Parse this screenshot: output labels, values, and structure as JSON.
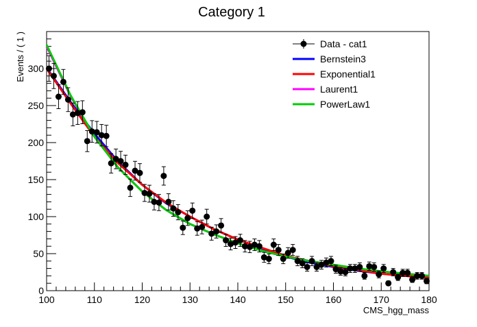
{
  "chart_data": {
    "type": "scatter",
    "title": "Category 1",
    "xlabel": "CMS_hgg_mass",
    "ylabel": "Events / ( 1 )",
    "xlim": [
      100,
      180
    ],
    "ylim": [
      0,
      350
    ],
    "xticks": [
      100,
      110,
      120,
      130,
      140,
      150,
      160,
      170,
      180
    ],
    "yticks": [
      0,
      50,
      100,
      150,
      200,
      250,
      300
    ],
    "legend_position": "top-right",
    "data_series": {
      "name": "Data - cat1",
      "color": "#000000",
      "points": [
        [
          100.5,
          300
        ],
        [
          101.5,
          290
        ],
        [
          102.5,
          262
        ],
        [
          103.5,
          282
        ],
        [
          104.5,
          258
        ],
        [
          105.5,
          238
        ],
        [
          106.5,
          240
        ],
        [
          107.5,
          241
        ],
        [
          108.5,
          202
        ],
        [
          109.5,
          215
        ],
        [
          110.5,
          214
        ],
        [
          111.5,
          210
        ],
        [
          112.5,
          209
        ],
        [
          113.5,
          172
        ],
        [
          114.5,
          178
        ],
        [
          115.5,
          175
        ],
        [
          116.5,
          170
        ],
        [
          117.5,
          139
        ],
        [
          118.5,
          162
        ],
        [
          119.5,
          159
        ],
        [
          120.5,
          132
        ],
        [
          121.5,
          131
        ],
        [
          122.5,
          120
        ],
        [
          123.5,
          119
        ],
        [
          124.5,
          155
        ],
        [
          125.5,
          120
        ],
        [
          126.5,
          111
        ],
        [
          127.5,
          106
        ],
        [
          128.5,
          85
        ],
        [
          129.5,
          98
        ],
        [
          130.5,
          108
        ],
        [
          131.5,
          84
        ],
        [
          132.5,
          86
        ],
        [
          133.5,
          100
        ],
        [
          134.5,
          77
        ],
        [
          135.5,
          80
        ],
        [
          136.5,
          88
        ],
        [
          137.5,
          68
        ],
        [
          138.5,
          63
        ],
        [
          139.5,
          65
        ],
        [
          140.5,
          68
        ],
        [
          141.5,
          60
        ],
        [
          142.5,
          59
        ],
        [
          143.5,
          62
        ],
        [
          144.5,
          60
        ],
        [
          145.5,
          45
        ],
        [
          146.5,
          43
        ],
        [
          147.5,
          62
        ],
        [
          148.5,
          55
        ],
        [
          149.5,
          43
        ],
        [
          150.5,
          51
        ],
        [
          151.5,
          55
        ],
        [
          152.5,
          40
        ],
        [
          153.5,
          37
        ],
        [
          154.5,
          32
        ],
        [
          155.5,
          40
        ],
        [
          156.5,
          32
        ],
        [
          157.5,
          35
        ],
        [
          158.5,
          38
        ],
        [
          159.5,
          40
        ],
        [
          160.5,
          29
        ],
        [
          161.5,
          26
        ],
        [
          162.5,
          25
        ],
        [
          163.5,
          30
        ],
        [
          164.5,
          30
        ],
        [
          165.5,
          32
        ],
        [
          166.5,
          20
        ],
        [
          167.5,
          33
        ],
        [
          168.5,
          32
        ],
        [
          169.5,
          22
        ],
        [
          170.5,
          30
        ],
        [
          171.5,
          10
        ],
        [
          172.5,
          25
        ],
        [
          173.5,
          18
        ],
        [
          174.5,
          24
        ],
        [
          175.5,
          24
        ],
        [
          176.5,
          15
        ],
        [
          177.5,
          20
        ],
        [
          178.5,
          20
        ],
        [
          179.5,
          13
        ]
      ]
    },
    "fit_curves": [
      {
        "name": "Bernstein3",
        "color": "#0000ff",
        "x": [
          100,
          105,
          110,
          115,
          120,
          125,
          130,
          135,
          140,
          145,
          150,
          155,
          160,
          165,
          170,
          175,
          180
        ],
        "y": [
          301,
          255,
          212,
          174,
          143,
          118,
          100,
          83,
          69,
          57,
          46,
          38,
          32,
          27,
          23,
          20,
          18
        ]
      },
      {
        "name": "Exponential1",
        "color": "#ff0000",
        "x": [
          100,
          105,
          110,
          115,
          120,
          125,
          130,
          135,
          140,
          145,
          150,
          155,
          160,
          165,
          170,
          175,
          180
        ],
        "y": [
          300,
          253,
          208,
          172,
          143,
          119,
          100,
          83,
          69,
          58,
          47,
          40,
          33,
          28,
          23,
          20,
          17
        ]
      },
      {
        "name": "Laurent1",
        "color": "#ff00ff",
        "x": [
          100,
          105,
          110,
          115,
          120,
          125,
          130,
          135,
          140,
          145,
          150,
          155,
          160,
          165,
          170,
          175,
          180
        ],
        "y": [
          330,
          263,
          208,
          166,
          134,
          109,
          90,
          76,
          64,
          54,
          46,
          40,
          35,
          30,
          26,
          23,
          20
        ]
      },
      {
        "name": "PowerLaw1",
        "color": "#00cc00",
        "x": [
          100,
          105,
          110,
          115,
          120,
          125,
          130,
          135,
          140,
          145,
          150,
          155,
          160,
          165,
          170,
          175,
          180
        ],
        "y": [
          332,
          264,
          208,
          166,
          134,
          109,
          90,
          76,
          64,
          54,
          46,
          40,
          35,
          30,
          26,
          23,
          20
        ]
      }
    ],
    "legend": [
      {
        "label": "Data - cat1",
        "kind": "marker",
        "color": "#000000"
      },
      {
        "label": "Bernstein3",
        "kind": "line",
        "color": "#0000ff"
      },
      {
        "label": "Exponential1",
        "kind": "line",
        "color": "#ff0000"
      },
      {
        "label": "Laurent1",
        "kind": "line",
        "color": "#ff00ff"
      },
      {
        "label": "PowerLaw1",
        "kind": "line",
        "color": "#00cc00"
      }
    ]
  }
}
